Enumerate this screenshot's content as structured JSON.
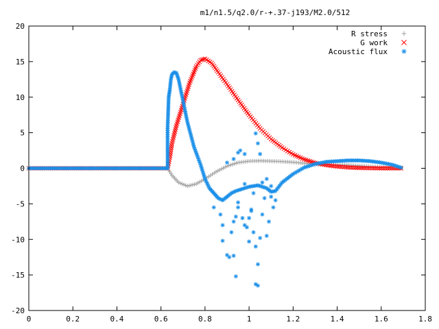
{
  "chart_data": {
    "type": "scatter",
    "title": "m1/n1.5/q2.0/r-+.37-j193/M2.0/512",
    "xlabel": "",
    "ylabel": "",
    "xlim": [
      0,
      1.8
    ],
    "ylim": [
      -20,
      20
    ],
    "x_ticks": [
      "0",
      "0.2",
      "0.4",
      "0.6",
      "0.8",
      "1",
      "1.2",
      "1.4",
      "1.6",
      "1.8"
    ],
    "y_ticks": [
      "20",
      "15",
      "10",
      "5",
      "0",
      "-5",
      "-10",
      "-15",
      "-20"
    ],
    "x_tick_values": [
      0,
      0.2,
      0.4,
      0.6,
      0.8,
      1.0,
      1.2,
      1.4,
      1.6,
      1.8
    ],
    "y_tick_values": [
      20,
      15,
      10,
      5,
      0,
      -5,
      -10,
      -15,
      -20
    ],
    "grid": false,
    "legend_position": "top-right",
    "series": [
      {
        "name": "R stress",
        "marker": "plus",
        "color": "#a0a0a0",
        "points": [
          [
            0,
            0
          ],
          [
            0.1,
            0
          ],
          [
            0.2,
            0
          ],
          [
            0.3,
            0
          ],
          [
            0.4,
            0
          ],
          [
            0.5,
            0
          ],
          [
            0.6,
            0
          ],
          [
            0.63,
            0
          ],
          [
            0.65,
            -1.0
          ],
          [
            0.68,
            -2.0
          ],
          [
            0.72,
            -2.5
          ],
          [
            0.76,
            -2.2
          ],
          [
            0.8,
            -1.5
          ],
          [
            0.85,
            -0.5
          ],
          [
            0.9,
            0.3
          ],
          [
            0.95,
            0.8
          ],
          [
            1.0,
            1.0
          ],
          [
            1.05,
            1.05
          ],
          [
            1.1,
            1.0
          ],
          [
            1.15,
            0.95
          ],
          [
            1.2,
            0.85
          ],
          [
            1.25,
            0.7
          ],
          [
            1.3,
            0.55
          ],
          [
            1.35,
            0.5
          ],
          [
            1.4,
            0.5
          ],
          [
            1.45,
            0.45
          ],
          [
            1.5,
            0.35
          ],
          [
            1.55,
            0.25
          ],
          [
            1.6,
            0.15
          ],
          [
            1.65,
            0.05
          ],
          [
            1.69,
            0
          ]
        ]
      },
      {
        "name": "G work",
        "marker": "cross",
        "color": "#ff0000",
        "points": [
          [
            0,
            0
          ],
          [
            0.1,
            0
          ],
          [
            0.2,
            0
          ],
          [
            0.3,
            0
          ],
          [
            0.4,
            0
          ],
          [
            0.5,
            0
          ],
          [
            0.6,
            0
          ],
          [
            0.63,
            0
          ],
          [
            0.64,
            1.5
          ],
          [
            0.65,
            3.5
          ],
          [
            0.67,
            6
          ],
          [
            0.7,
            9
          ],
          [
            0.73,
            12
          ],
          [
            0.76,
            14.3
          ],
          [
            0.78,
            15.2
          ],
          [
            0.8,
            15.4
          ],
          [
            0.83,
            14.8
          ],
          [
            0.86,
            13.5
          ],
          [
            0.9,
            11.8
          ],
          [
            0.95,
            9.6
          ],
          [
            1.0,
            7.5
          ],
          [
            1.05,
            5.6
          ],
          [
            1.1,
            4.1
          ],
          [
            1.15,
            2.9
          ],
          [
            1.2,
            1.95
          ],
          [
            1.25,
            1.25
          ],
          [
            1.3,
            0.75
          ],
          [
            1.35,
            0.45
          ],
          [
            1.4,
            0.25
          ],
          [
            1.45,
            0.12
          ],
          [
            1.5,
            0.05
          ],
          [
            1.55,
            0.02
          ],
          [
            1.6,
            0
          ],
          [
            1.69,
            0
          ]
        ]
      },
      {
        "name": "Acoustic flux",
        "marker": "star",
        "color": "#1a8fe8",
        "points": [
          [
            0,
            0
          ],
          [
            0.1,
            0
          ],
          [
            0.2,
            0
          ],
          [
            0.3,
            0
          ],
          [
            0.4,
            0
          ],
          [
            0.5,
            0
          ],
          [
            0.6,
            0
          ],
          [
            0.63,
            0
          ],
          [
            0.63,
            5.6
          ],
          [
            0.635,
            10
          ],
          [
            0.64,
            11
          ],
          [
            0.645,
            12.5
          ],
          [
            0.65,
            13.2
          ],
          [
            0.66,
            13.5
          ],
          [
            0.67,
            13.4
          ],
          [
            0.68,
            12.5
          ],
          [
            0.7,
            9.5
          ],
          [
            0.72,
            6.5
          ],
          [
            0.75,
            3
          ],
          [
            0.78,
            0.5
          ],
          [
            0.8,
            -1.5
          ],
          [
            0.82,
            -2.8
          ],
          [
            0.84,
            -3.5
          ],
          [
            0.86,
            -4.2
          ],
          [
            0.88,
            -4.5
          ],
          [
            0.9,
            -4.0
          ],
          [
            0.92,
            -3.5
          ],
          [
            0.94,
            -3.2
          ],
          [
            0.96,
            -3.0
          ],
          [
            0.98,
            -2.8
          ],
          [
            1.0,
            -2.6
          ],
          [
            1.04,
            -2.4
          ],
          [
            1.08,
            -2.8
          ],
          [
            1.1,
            -3.3
          ],
          [
            1.12,
            -3.2
          ],
          [
            1.15,
            -2.0
          ],
          [
            1.2,
            -0.8
          ],
          [
            1.25,
            0.1
          ],
          [
            1.3,
            0.6
          ],
          [
            1.35,
            0.9
          ],
          [
            1.4,
            1.0
          ],
          [
            1.45,
            1.1
          ],
          [
            1.5,
            1.1
          ],
          [
            1.55,
            1.0
          ],
          [
            1.6,
            0.8
          ],
          [
            1.65,
            0.5
          ],
          [
            1.69,
            0.1
          ]
        ]
      },
      {
        "name": "",
        "marker": "star",
        "color": "#1a8fe8",
        "points": [
          [
            0.84,
            -5.5
          ],
          [
            0.87,
            -6.5
          ],
          [
            0.88,
            -8
          ],
          [
            0.88,
            -10.2
          ],
          [
            0.9,
            -12.2
          ],
          [
            0.91,
            -12.5
          ],
          [
            0.93,
            -12.3
          ],
          [
            0.94,
            -15.2
          ],
          [
            0.92,
            -9
          ],
          [
            0.93,
            -7.5
          ],
          [
            0.94,
            -6.8
          ],
          [
            0.95,
            -5.5
          ],
          [
            0.97,
            -7
          ],
          [
            0.98,
            -8
          ],
          [
            0.99,
            -8.3
          ],
          [
            1.0,
            -7
          ],
          [
            1.0,
            -10.3
          ],
          [
            1.01,
            -6
          ],
          [
            1.02,
            -9
          ],
          [
            1.03,
            -11
          ],
          [
            1.03,
            -16.3
          ],
          [
            1.04,
            -16.5
          ],
          [
            1.04,
            -13.5
          ],
          [
            1.05,
            -9.8
          ],
          [
            1.06,
            -6.5
          ],
          [
            1.07,
            -4.2
          ],
          [
            1.08,
            -9.5
          ],
          [
            1.09,
            -7.5
          ],
          [
            1.1,
            -4
          ],
          [
            1.11,
            -5.5
          ],
          [
            1.12,
            -4.5
          ],
          [
            0.95,
            2.2
          ],
          [
            0.96,
            2.5
          ],
          [
            0.93,
            1.3
          ],
          [
            0.98,
            2.0
          ],
          [
            1.03,
            4.9
          ],
          [
            1.04,
            3.5
          ],
          [
            1.05,
            2.0
          ],
          [
            0.98,
            -2.2
          ],
          [
            0.95,
            -4.8
          ],
          [
            1.01,
            -5.8
          ],
          [
            1.02,
            -3.5
          ],
          [
            0.9,
            0.8
          ],
          [
            1.06,
            -2.0
          ],
          [
            1.08,
            -1.5
          ],
          [
            1.1,
            -2.5
          ]
        ]
      }
    ]
  }
}
